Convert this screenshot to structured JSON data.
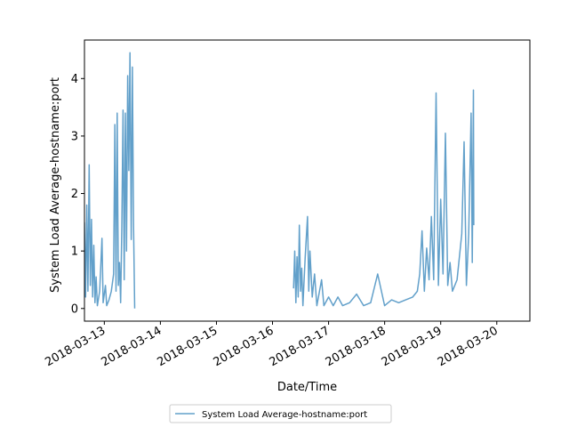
{
  "chart_data": {
    "type": "line",
    "title": "",
    "xlabel": "Date/Time",
    "ylabel": "System Load Average-hostname:port",
    "x_ticks": [
      "2018-03-13",
      "2018-03-14",
      "2018-03-15",
      "2018-03-16",
      "2018-03-17",
      "2018-03-18",
      "2018-03-19",
      "2018-03-20"
    ],
    "y_ticks": [
      "0",
      "1",
      "2",
      "3",
      "4"
    ],
    "xlim": [
      "2018-03-12 15:30",
      "2018-03-20 14:10"
    ],
    "ylim": [
      -0.22,
      4.67
    ],
    "grid": false,
    "legend_position": "below-center",
    "series": [
      {
        "name": "System Load Average-hostname:port",
        "color": "#1f77b4",
        "alpha": 0.7,
        "segments": [
          {
            "points": [
              [
                "2018-03-12 15:30",
                1.5
              ],
              [
                "2018-03-12 16:00",
                0.2
              ],
              [
                "2018-03-12 16:30",
                1.8
              ],
              [
                "2018-03-12 17:00",
                0.3
              ],
              [
                "2018-03-12 17:30",
                2.5
              ],
              [
                "2018-03-12 18:00",
                0.4
              ],
              [
                "2018-03-12 18:30",
                1.55
              ],
              [
                "2018-03-12 19:00",
                0.2
              ],
              [
                "2018-03-12 19:30",
                1.1
              ],
              [
                "2018-03-12 20:00",
                0.1
              ],
              [
                "2018-03-12 20:30",
                0.55
              ],
              [
                "2018-03-12 21:00",
                0.05
              ],
              [
                "2018-03-12 22:00",
                0.3
              ],
              [
                "2018-03-12 23:00",
                1.22
              ],
              [
                "2018-03-12 23:30",
                0.1
              ],
              [
                "2018-03-13 00:30",
                0.4
              ],
              [
                "2018-03-13 01:00",
                0.05
              ],
              [
                "2018-03-13 02:00",
                0.15
              ],
              [
                "2018-03-13 03:00",
                0.3
              ],
              [
                "2018-03-13 04:00",
                0.6
              ],
              [
                "2018-03-13 04:30",
                3.2
              ],
              [
                "2018-03-13 05:00",
                0.3
              ],
              [
                "2018-03-13 05:30",
                3.4
              ],
              [
                "2018-03-13 06:00",
                0.4
              ],
              [
                "2018-03-13 06:30",
                0.8
              ],
              [
                "2018-03-13 07:00",
                0.1
              ],
              [
                "2018-03-13 07:30",
                1.4
              ],
              [
                "2018-03-13 08:00",
                3.45
              ],
              [
                "2018-03-13 08:30",
                0.5
              ],
              [
                "2018-03-13 09:00",
                3.4
              ],
              [
                "2018-03-13 09:30",
                1.0
              ],
              [
                "2018-03-13 10:00",
                4.05
              ],
              [
                "2018-03-13 10:30",
                2.4
              ],
              [
                "2018-03-13 11:00",
                4.45
              ],
              [
                "2018-03-13 11:30",
                1.2
              ],
              [
                "2018-03-13 12:00",
                4.2
              ],
              [
                "2018-03-13 12:30",
                1.45
              ],
              [
                "2018-03-13 13:00",
                0.0
              ]
            ]
          },
          {
            "points": [
              [
                "2018-03-16 09:00",
                0.35
              ],
              [
                "2018-03-16 09:30",
                1.0
              ],
              [
                "2018-03-16 10:00",
                0.1
              ],
              [
                "2018-03-16 10:30",
                0.9
              ],
              [
                "2018-03-16 11:00",
                0.2
              ],
              [
                "2018-03-16 11:30",
                1.45
              ],
              [
                "2018-03-16 12:00",
                0.3
              ],
              [
                "2018-03-16 12:30",
                0.7
              ],
              [
                "2018-03-16 13:00",
                0.05
              ],
              [
                "2018-03-16 14:00",
                0.9
              ],
              [
                "2018-03-16 15:00",
                1.6
              ],
              [
                "2018-03-16 15:30",
                0.3
              ],
              [
                "2018-03-16 16:00",
                1.0
              ],
              [
                "2018-03-16 17:00",
                0.2
              ],
              [
                "2018-03-16 18:00",
                0.6
              ],
              [
                "2018-03-16 19:00",
                0.05
              ],
              [
                "2018-03-16 21:00",
                0.5
              ],
              [
                "2018-03-16 22:00",
                0.05
              ],
              [
                "2018-03-17 00:00",
                0.2
              ],
              [
                "2018-03-17 02:00",
                0.05
              ],
              [
                "2018-03-17 04:00",
                0.2
              ],
              [
                "2018-03-17 06:00",
                0.05
              ],
              [
                "2018-03-17 09:00",
                0.1
              ],
              [
                "2018-03-17 12:00",
                0.25
              ],
              [
                "2018-03-17 15:00",
                0.05
              ],
              [
                "2018-03-17 18:00",
                0.1
              ],
              [
                "2018-03-17 21:00",
                0.6
              ],
              [
                "2018-03-18 00:00",
                0.05
              ],
              [
                "2018-03-18 03:00",
                0.15
              ],
              [
                "2018-03-18 06:00",
                0.1
              ],
              [
                "2018-03-18 09:00",
                0.15
              ],
              [
                "2018-03-18 12:00",
                0.2
              ],
              [
                "2018-03-18 14:00",
                0.3
              ],
              [
                "2018-03-18 15:00",
                0.6
              ],
              [
                "2018-03-18 16:00",
                1.35
              ],
              [
                "2018-03-18 17:00",
                0.3
              ],
              [
                "2018-03-18 18:00",
                1.05
              ],
              [
                "2018-03-18 19:00",
                0.5
              ],
              [
                "2018-03-18 20:00",
                1.6
              ],
              [
                "2018-03-18 21:00",
                0.5
              ],
              [
                "2018-03-18 22:00",
                3.75
              ],
              [
                "2018-03-18 23:00",
                0.4
              ],
              [
                "2018-03-19 00:00",
                1.9
              ],
              [
                "2018-03-19 01:00",
                0.6
              ],
              [
                "2018-03-19 02:00",
                3.05
              ],
              [
                "2018-03-19 03:00",
                0.4
              ],
              [
                "2018-03-19 04:00",
                0.8
              ],
              [
                "2018-03-19 05:00",
                0.3
              ],
              [
                "2018-03-19 07:00",
                0.5
              ],
              [
                "2018-03-19 09:00",
                1.3
              ],
              [
                "2018-03-19 10:00",
                2.9
              ],
              [
                "2018-03-19 11:00",
                0.4
              ],
              [
                "2018-03-19 12:00",
                1.3
              ],
              [
                "2018-03-19 13:00",
                3.4
              ],
              [
                "2018-03-19 13:30",
                0.8
              ],
              [
                "2018-03-19 14:00",
                3.8
              ],
              [
                "2018-03-19 14:10",
                1.45
              ]
            ]
          }
        ]
      }
    ]
  }
}
